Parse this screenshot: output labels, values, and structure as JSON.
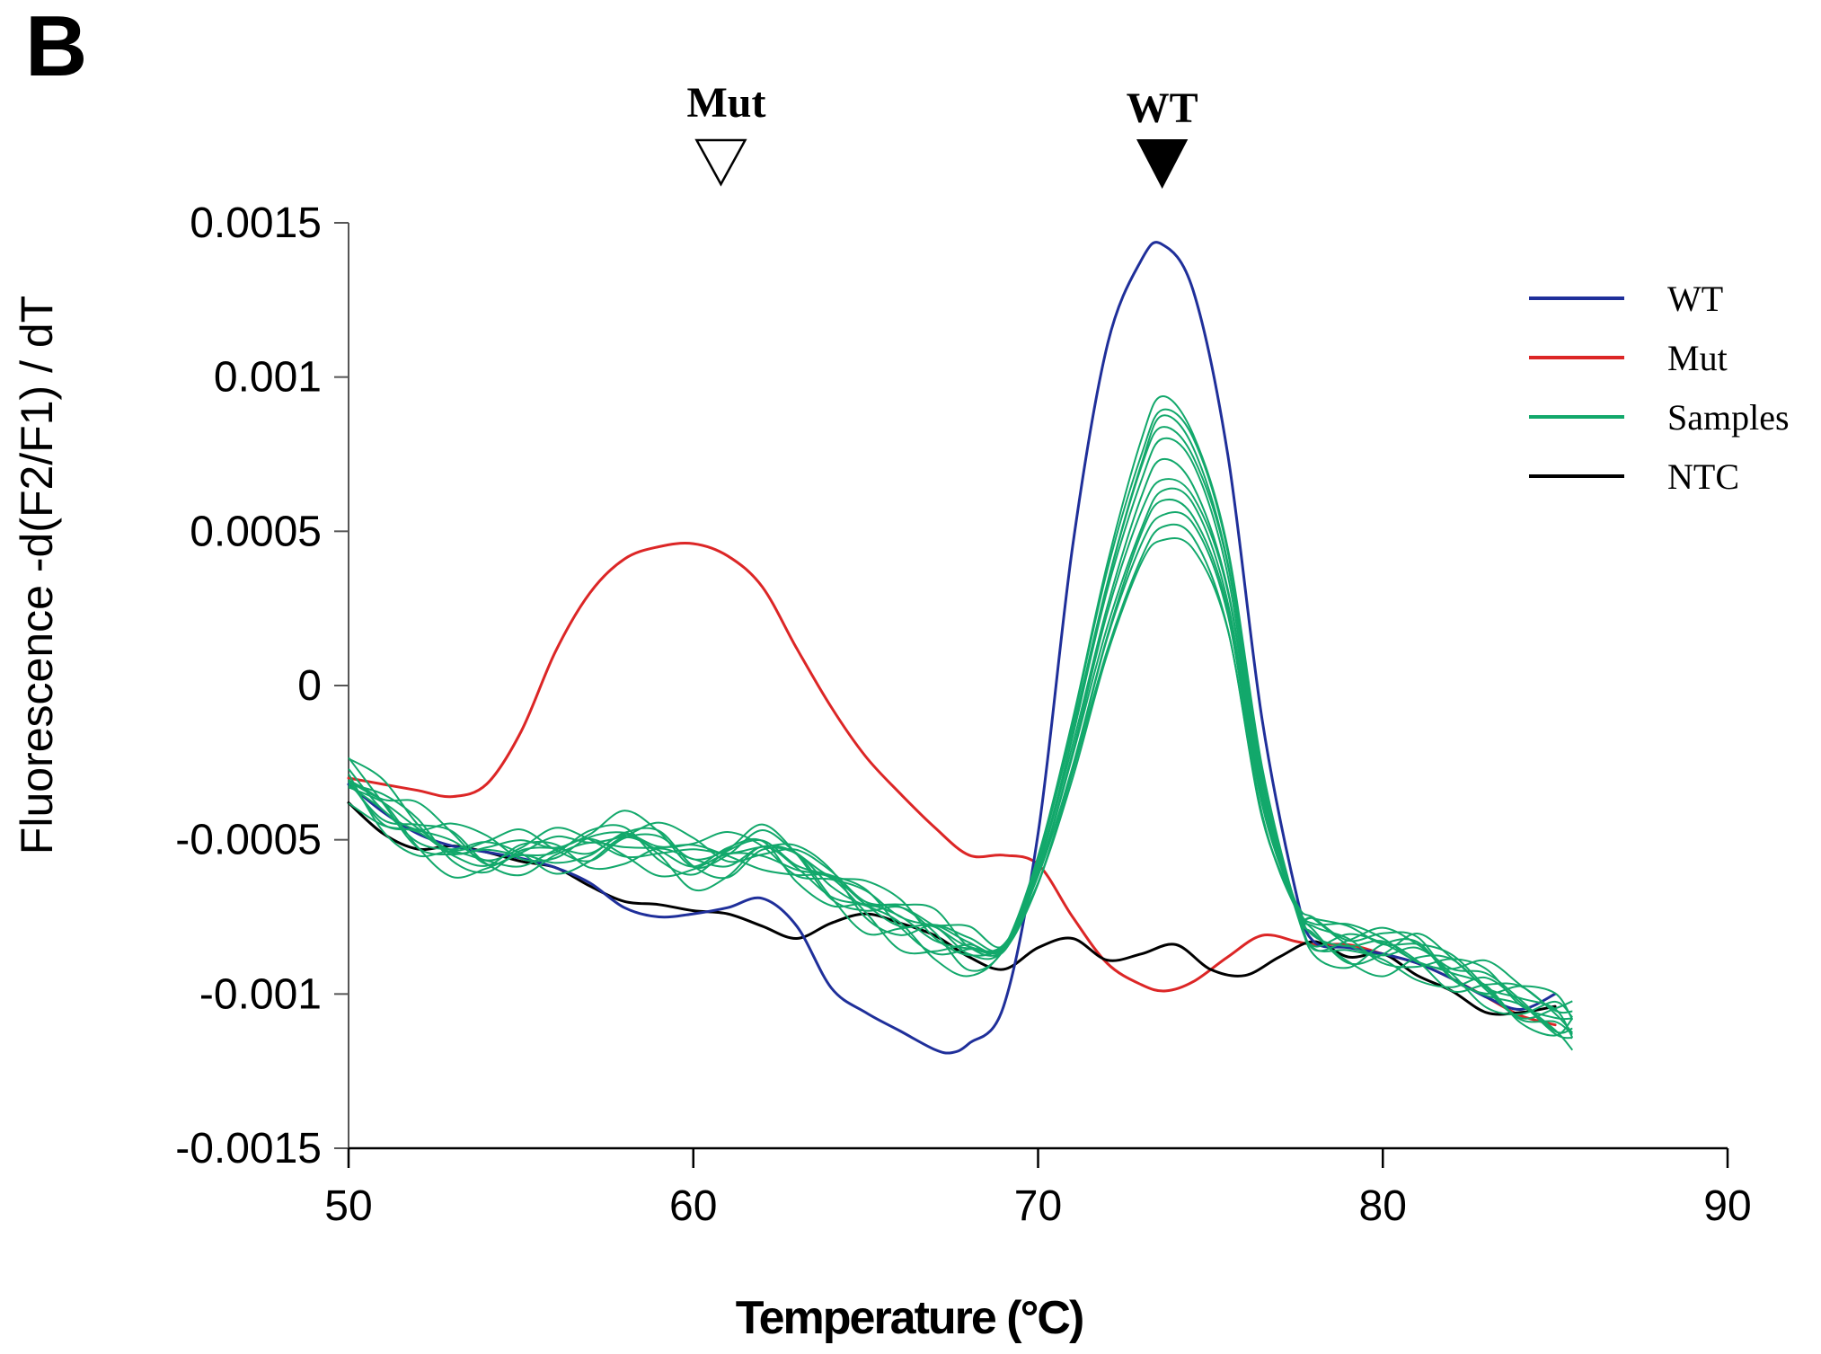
{
  "panel_label": "B",
  "chart_data": {
    "type": "line",
    "title": "",
    "xlabel": "Temperature (°C)",
    "ylabel": "Fluorescence -d(F2/F1) / dT",
    "xlim": [
      50,
      90
    ],
    "ylim": [
      -0.0015,
      0.0015
    ],
    "x_ticks": [
      "50",
      "60",
      "70",
      "80",
      "90"
    ],
    "y_ticks": [
      "-0.0015",
      "-0.001",
      "-0.0005",
      "0",
      "0.0005",
      "0.001",
      "0.0015"
    ],
    "annotations": [
      {
        "label": "Mut",
        "x": 60.8,
        "marker": "open-triangle-down"
      },
      {
        "label": "WT",
        "x": 73.6,
        "marker": "filled-triangle-down"
      }
    ],
    "legend": [
      {
        "label": "WT",
        "color": "#1f2f9a"
      },
      {
        "label": "Mut",
        "color": "#dc2626"
      },
      {
        "label": "Samples",
        "color": "#12a86b"
      },
      {
        "label": "NTC",
        "color": "#000000"
      }
    ],
    "series": [
      {
        "name": "WT",
        "color": "#1f2f9a",
        "width": 3,
        "x": [
          50,
          51,
          52,
          53,
          54,
          55,
          56,
          57,
          58,
          59,
          60,
          61,
          62,
          63,
          64,
          65,
          66,
          67,
          67.5,
          68,
          69,
          70,
          71,
          72,
          73,
          73.6,
          74.5,
          75.5,
          76.5,
          77.5,
          78,
          79,
          80,
          81,
          82,
          83,
          84,
          85
        ],
        "y": [
          -0.00032,
          -0.00041,
          -0.00048,
          -0.00052,
          -0.00054,
          -0.00056,
          -0.00059,
          -0.00064,
          -0.00072,
          -0.00075,
          -0.00074,
          -0.00072,
          -0.00069,
          -0.00078,
          -0.00098,
          -0.00106,
          -0.00112,
          -0.00118,
          -0.00119,
          -0.00116,
          -0.00104,
          -0.00048,
          0.00045,
          0.0011,
          0.00138,
          0.00143,
          0.00128,
          0.00075,
          -0.00011,
          -0.00068,
          -0.00083,
          -0.00085,
          -0.00087,
          -0.0009,
          -0.00095,
          -0.00101,
          -0.00105,
          -0.001
        ]
      },
      {
        "name": "Mut",
        "color": "#dc2626",
        "width": 3,
        "x": [
          50,
          51,
          52,
          53,
          54,
          55,
          56,
          57,
          58,
          59,
          60,
          61,
          62,
          63,
          64,
          65,
          66,
          67,
          68,
          69,
          70,
          71,
          72,
          73,
          73.7,
          74.5,
          75.5,
          76.5,
          77.5,
          78,
          79,
          80,
          81,
          82,
          83,
          84,
          85
        ],
        "y": [
          -0.0003,
          -0.00032,
          -0.00034,
          -0.00036,
          -0.00032,
          -0.00015,
          0.00011,
          0.0003,
          0.00041,
          0.00045,
          0.00046,
          0.00042,
          0.00032,
          0.00012,
          -7e-05,
          -0.00023,
          -0.00035,
          -0.00046,
          -0.00055,
          -0.00055,
          -0.00058,
          -0.00075,
          -0.0009,
          -0.00097,
          -0.00099,
          -0.00096,
          -0.00088,
          -0.00081,
          -0.00083,
          -0.00084,
          -0.00084,
          -0.00087,
          -0.0009,
          -0.00095,
          -0.00101,
          -0.00107,
          -0.0011
        ]
      },
      {
        "name": "NTC",
        "color": "#000000",
        "width": 3,
        "x": [
          50,
          51,
          52,
          53,
          54,
          55,
          56,
          57,
          58,
          59,
          60,
          61,
          62,
          63,
          64,
          65,
          66,
          67,
          68,
          69,
          70,
          71,
          72,
          73,
          74,
          75,
          76,
          77,
          78,
          79,
          80,
          81,
          82,
          83,
          84,
          85
        ],
        "y": [
          -0.00038,
          -0.00048,
          -0.00053,
          -0.00052,
          -0.00054,
          -0.00057,
          -0.00059,
          -0.00065,
          -0.0007,
          -0.00071,
          -0.00073,
          -0.00074,
          -0.00078,
          -0.00082,
          -0.00077,
          -0.00074,
          -0.00077,
          -0.00081,
          -0.00088,
          -0.00092,
          -0.00085,
          -0.00082,
          -0.00089,
          -0.00087,
          -0.00084,
          -0.00092,
          -0.00094,
          -0.00088,
          -0.00083,
          -0.00088,
          -0.00087,
          -0.00094,
          -0.00099,
          -0.00106,
          -0.00106,
          -0.00104
        ]
      }
    ],
    "samples": {
      "name": "Samples",
      "color": "#12a86b",
      "width": 2,
      "x": [
        50,
        51,
        52,
        53,
        54,
        55,
        56,
        57,
        58,
        59,
        60,
        61,
        62,
        63,
        64,
        65,
        66,
        67,
        68,
        69,
        70,
        71,
        72,
        73,
        73.6,
        74.5,
        75.5,
        76.5,
        77.5,
        78,
        79,
        80,
        81,
        82,
        83,
        84,
        85,
        85.5
      ],
      "base_y": [
        -0.0003,
        -0.0004,
        -0.00047,
        -0.00052,
        -0.00055,
        -0.00054,
        -0.00053,
        -0.00052,
        -0.0005,
        -0.00052,
        -0.00056,
        -0.00055,
        -0.00052,
        -0.00057,
        -0.00064,
        -0.00071,
        -0.00076,
        -0.0008,
        -0.00085,
        -0.00085,
        -0.0006,
        -0.0002,
        0.00025,
        0.0006,
        0.00072,
        0.00065,
        0.00032,
        -0.00035,
        -0.00072,
        -0.0008,
        -0.00084,
        -0.00085,
        -0.00086,
        -0.00092,
        -0.00097,
        -0.00103,
        -0.00107,
        -0.0011
      ],
      "peaks": [
        0.00095,
        0.00091,
        0.00087,
        0.00084,
        0.0008,
        0.00073,
        0.00068,
        0.00063,
        0.00059,
        0.00055,
        0.0005,
        0.00047
      ]
    }
  }
}
